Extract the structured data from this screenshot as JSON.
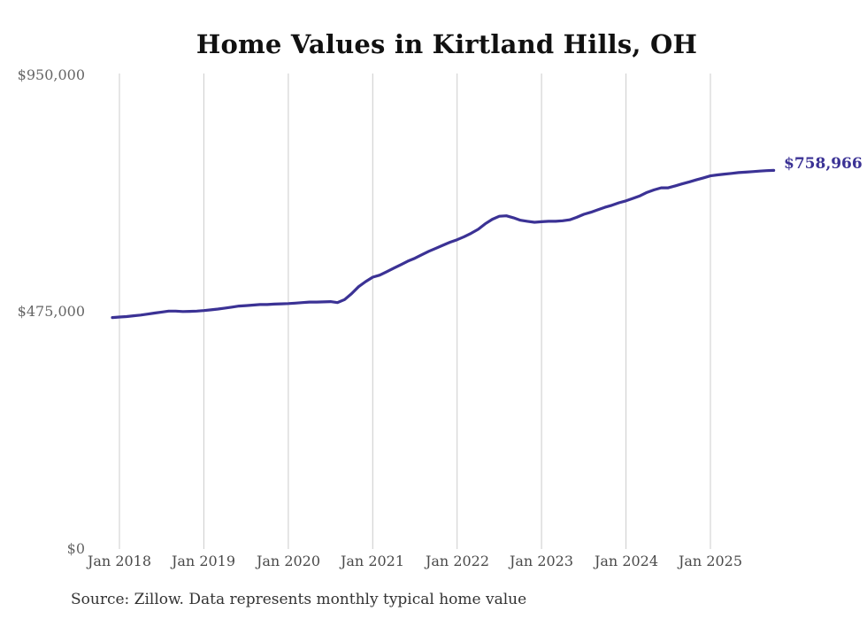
{
  "title": "Home Values in Kirtland Hills, OH",
  "footer": {
    "text": "Source: Zillow. Data represents monthly typical home value"
  },
  "colors": {
    "line": "#3b3295",
    "gridline": "#cccccc",
    "title_text": "#111111",
    "y_tick_text": "#666666",
    "x_tick_text": "#4a4a4a",
    "end_label_text": "#3b3295",
    "background": "#ffffff"
  },
  "chart_data": {
    "type": "line",
    "title": "Home Values in Kirtland Hills, OH",
    "xlabel": "",
    "ylabel": "",
    "ylim": [
      0,
      950000
    ],
    "grid": "vertical-only",
    "legend": "none",
    "end_label": "$758,966",
    "y_tick_labels": [
      "$0",
      "$475,000",
      "$950,000"
    ],
    "y_tick_values": [
      0,
      475000,
      950000
    ],
    "x_tick_labels": [
      "Jan 2018",
      "Jan 2019",
      "Jan 2020",
      "Jan 2021",
      "Jan 2022",
      "Jan 2023",
      "Jan 2024",
      "Jan 2025"
    ],
    "series": [
      {
        "name": "Monthly typical home value",
        "color": "#3b3295",
        "start": "2017-12",
        "frequency": "monthly",
        "end_value_exact": 758966,
        "values": [
          464000,
          465000,
          466000,
          467500,
          469000,
          471000,
          473000,
          475000,
          477000,
          477000,
          476000,
          476500,
          477000,
          478000,
          479500,
          481000,
          483000,
          485000,
          487000,
          488000,
          489000,
          490000,
          490000,
          491000,
          491500,
          492000,
          493000,
          494000,
          495000,
          495000,
          495500,
          496000,
          494000,
          500000,
          512000,
          526000,
          536000,
          545000,
          549000,
          556000,
          563000,
          570000,
          577000,
          583000,
          590000,
          597000,
          603000,
          609000,
          615000,
          620000,
          626000,
          633000,
          641000,
          652000,
          661000,
          667000,
          668000,
          664000,
          659000,
          657000,
          655000,
          656000,
          657000,
          657000,
          658000,
          660000,
          665000,
          671000,
          675000,
          680000,
          685000,
          689000,
          694000,
          698000,
          703000,
          708000,
          715000,
          720000,
          724000,
          724000,
          728000,
          732000,
          736000,
          740000,
          744000,
          748000,
          750000,
          751500,
          753000,
          754500,
          755500,
          756500,
          757500,
          758500,
          758966
        ]
      }
    ]
  }
}
